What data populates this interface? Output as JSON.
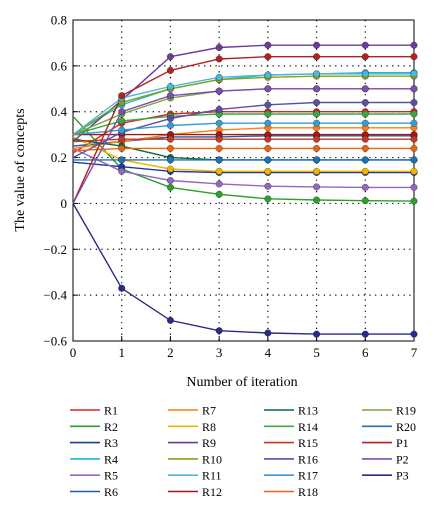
{
  "chart_data": {
    "type": "line",
    "title": "",
    "xlabel": "Number of iteration",
    "ylabel": "The value of concepts",
    "xlim": [
      0,
      7
    ],
    "ylim": [
      -0.6,
      0.8
    ],
    "grid": true,
    "grid_style": "dotted",
    "legend_placement": "bottom",
    "x": [
      0,
      1,
      2,
      3,
      4,
      5,
      6,
      7
    ],
    "x_ticks": [
      "0",
      "1",
      "2",
      "3",
      "4",
      "5",
      "6",
      "7"
    ],
    "y_ticks": [
      {
        "value": 0.8,
        "label": "0.8"
      },
      {
        "value": 0.6,
        "label": "0.6"
      },
      {
        "value": 0.4,
        "label": "0.4"
      },
      {
        "value": 0.2,
        "label": "0.2"
      },
      {
        "value": 0,
        "label": "0"
      },
      {
        "value": -0.2,
        "label": "−0.2"
      },
      {
        "value": -0.4,
        "label": "−0.4"
      },
      {
        "value": -0.6,
        "label": "−0.6"
      }
    ],
    "series": [
      {
        "name": "R1",
        "color": "#d62728",
        "values": [
          0.22,
          0.35,
          0.39,
          0.4,
          0.4,
          0.4,
          0.4,
          0.4
        ]
      },
      {
        "name": "R2",
        "color": "#2ca02c",
        "values": [
          0.38,
          0.15,
          0.07,
          0.04,
          0.02,
          0.015,
          0.012,
          0.01
        ]
      },
      {
        "name": "R3",
        "color": "#1f3b9a",
        "values": [
          0.18,
          0.16,
          0.14,
          0.135,
          0.135,
          0.135,
          0.135,
          0.135
        ]
      },
      {
        "name": "R4",
        "color": "#17becf",
        "values": [
          0.3,
          0.43,
          0.5,
          0.54,
          0.56,
          0.565,
          0.57,
          0.57
        ]
      },
      {
        "name": "R5",
        "color": "#9467bd",
        "values": [
          0.24,
          0.14,
          0.1,
          0.085,
          0.075,
          0.072,
          0.07,
          0.07
        ]
      },
      {
        "name": "R6",
        "color": "#1f5fa8",
        "values": [
          0.25,
          0.27,
          0.29,
          0.29,
          0.295,
          0.295,
          0.295,
          0.295
        ]
      },
      {
        "name": "R7",
        "color": "#ff7f0e",
        "values": [
          0.24,
          0.27,
          0.3,
          0.32,
          0.33,
          0.33,
          0.33,
          0.33
        ]
      },
      {
        "name": "R8",
        "color": "#f2b400",
        "values": [
          0.29,
          0.19,
          0.15,
          0.14,
          0.14,
          0.14,
          0.14,
          0.14
        ]
      },
      {
        "name": "R9",
        "color": "#6a3d9a",
        "values": [
          0.27,
          0.45,
          0.64,
          0.68,
          0.69,
          0.69,
          0.69,
          0.69
        ]
      },
      {
        "name": "R10",
        "color": "#8c9f1f",
        "values": [
          0.3,
          0.44,
          0.5,
          0.54,
          0.55,
          0.555,
          0.555,
          0.555
        ]
      },
      {
        "name": "R11",
        "color": "#4fb8d8",
        "values": [
          0.3,
          0.46,
          0.51,
          0.55,
          0.56,
          0.565,
          0.565,
          0.565
        ]
      },
      {
        "name": "R12",
        "color": "#a01818",
        "values": [
          0.3,
          0.3,
          0.3,
          0.3,
          0.3,
          0.3,
          0.3,
          0.3
        ]
      },
      {
        "name": "R13",
        "color": "#0b6b3a",
        "values": [
          0.28,
          0.25,
          0.2,
          0.19,
          0.19,
          0.19,
          0.19,
          0.19
        ]
      },
      {
        "name": "R14",
        "color": "#39a845",
        "values": [
          0.3,
          0.36,
          0.38,
          0.39,
          0.39,
          0.39,
          0.39,
          0.39
        ]
      },
      {
        "name": "R15",
        "color": "#c0392b",
        "values": [
          0.27,
          0.28,
          0.28,
          0.28,
          0.28,
          0.28,
          0.28,
          0.28
        ]
      },
      {
        "name": "R16",
        "color": "#5b4fa8",
        "values": [
          0.2,
          0.31,
          0.37,
          0.41,
          0.43,
          0.44,
          0.44,
          0.44
        ]
      },
      {
        "name": "R17",
        "color": "#3a9ad9",
        "values": [
          0.3,
          0.32,
          0.34,
          0.35,
          0.35,
          0.35,
          0.35,
          0.35
        ]
      },
      {
        "name": "R18",
        "color": "#e8631a",
        "values": [
          0.23,
          0.24,
          0.24,
          0.24,
          0.24,
          0.24,
          0.24,
          0.24
        ]
      },
      {
        "name": "R19",
        "color": "#7aa63a",
        "values": [
          0.3,
          0.39,
          0.46,
          0.49,
          0.5,
          0.5,
          0.5,
          0.5
        ]
      },
      {
        "name": "R20",
        "color": "#2270b5",
        "values": [
          0.19,
          0.19,
          0.19,
          0.19,
          0.19,
          0.19,
          0.19,
          0.19
        ]
      },
      {
        "name": "P1",
        "color": "#b22222",
        "values": [
          0.0,
          0.47,
          0.58,
          0.63,
          0.64,
          0.64,
          0.64,
          0.64
        ]
      },
      {
        "name": "P2",
        "color": "#7b4fb0",
        "values": [
          0.0,
          0.4,
          0.47,
          0.49,
          0.5,
          0.5,
          0.5,
          0.5
        ]
      },
      {
        "name": "P3",
        "color": "#2a2a8a",
        "values": [
          0.0,
          -0.37,
          -0.51,
          -0.555,
          -0.565,
          -0.57,
          -0.57,
          -0.57
        ]
      }
    ]
  }
}
